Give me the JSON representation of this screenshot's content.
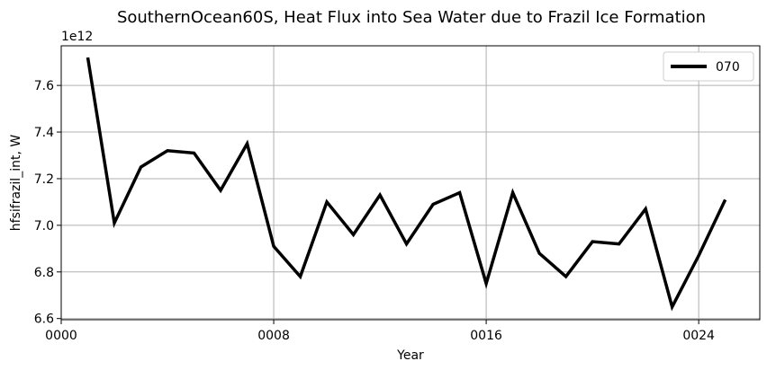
{
  "chart_data": {
    "type": "line",
    "title": "SouthernOcean60S, Heat Flux into Sea Water due to Frazil Ice Formation",
    "xlabel": "Year",
    "ylabel": "hfsifrazil_int, W",
    "y_offset_label": "1e12",
    "xlim": [
      0,
      26.3
    ],
    "ylim": [
      6.595,
      7.77
    ],
    "x_ticks": [
      0,
      8,
      16,
      24
    ],
    "x_tick_labels": [
      "0000",
      "0008",
      "0016",
      "0024"
    ],
    "y_ticks": [
      6.6,
      6.8,
      7.0,
      7.2,
      7.4,
      7.6
    ],
    "y_tick_labels": [
      "6.6",
      "6.8",
      "7.0",
      "7.2",
      "7.4",
      "7.6"
    ],
    "grid": true,
    "legend_position": "top-right",
    "x": [
      1,
      2,
      3,
      4,
      5,
      6,
      7,
      8,
      9,
      10,
      11,
      12,
      13,
      14,
      15,
      16,
      17,
      18,
      19,
      20,
      21,
      22,
      23,
      24,
      25
    ],
    "series": [
      {
        "name": "070",
        "color": "#000000",
        "values": [
          7.72,
          7.01,
          7.25,
          7.32,
          7.31,
          7.15,
          7.35,
          6.91,
          6.78,
          7.1,
          6.96,
          7.13,
          6.92,
          7.09,
          7.14,
          6.75,
          7.14,
          6.88,
          6.78,
          6.93,
          6.92,
          7.07,
          6.65,
          6.87,
          7.11
        ]
      }
    ]
  }
}
